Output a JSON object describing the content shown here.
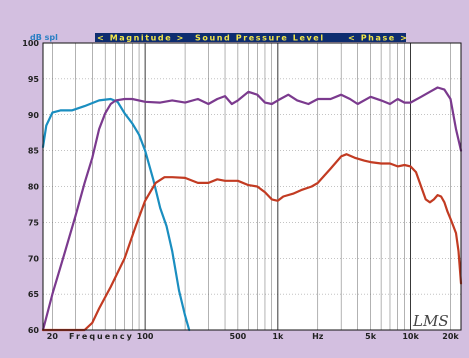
{
  "header": {
    "magnitude": "< Magnitude >",
    "spl": "Sound Pressure Level",
    "phase": "< Phase >"
  },
  "signature": "LMS",
  "colors": {
    "background": "#d3bfe0",
    "header_bar": "#0e2d70",
    "header_text": "#f2e64a",
    "plot_bg": "#ffffff",
    "blue": "#1a8ec0",
    "purple": "#7b3a8e",
    "red": "#c23b22"
  },
  "chart_data": {
    "type": "line",
    "x_scale": "log",
    "xlim": [
      17,
      24000
    ],
    "ylim": [
      60,
      100
    ],
    "ylabel": "dB spl",
    "xlabel": "Frequency",
    "y_ticks": [
      60,
      65,
      70,
      75,
      80,
      85,
      90,
      95,
      100
    ],
    "x_tick_labels": [
      {
        "f": 20,
        "label": "20"
      },
      {
        "f": 100,
        "label": "100"
      },
      {
        "f": 500,
        "label": "500"
      },
      {
        "f": 1000,
        "label": "1k"
      },
      {
        "f": 2000,
        "label": "Hz"
      },
      {
        "f": 5000,
        "label": "5k"
      },
      {
        "f": 10000,
        "label": "10k"
      },
      {
        "f": 20000,
        "label": "20k"
      }
    ],
    "grid": true,
    "series": [
      {
        "color": "#1a8ec0",
        "points": [
          [
            17,
            85.5
          ],
          [
            18,
            88.5
          ],
          [
            20,
            90.3
          ],
          [
            23,
            90.6
          ],
          [
            28,
            90.6
          ],
          [
            35,
            91.2
          ],
          [
            45,
            92.0
          ],
          [
            55,
            92.2
          ],
          [
            62,
            91.8
          ],
          [
            70,
            90.2
          ],
          [
            80,
            88.8
          ],
          [
            90,
            87.2
          ],
          [
            100,
            85
          ],
          [
            115,
            81
          ],
          [
            130,
            77
          ],
          [
            145,
            74.5
          ],
          [
            160,
            71
          ],
          [
            180,
            65.5
          ],
          [
            200,
            62
          ],
          [
            215,
            60
          ]
        ]
      },
      {
        "color": "#7b3a8e",
        "points": [
          [
            17,
            60
          ],
          [
            20,
            65
          ],
          [
            25,
            71
          ],
          [
            30,
            76
          ],
          [
            35,
            80.5
          ],
          [
            40,
            84
          ],
          [
            45,
            88
          ],
          [
            50,
            90.2
          ],
          [
            55,
            91.5
          ],
          [
            60,
            92
          ],
          [
            70,
            92.2
          ],
          [
            80,
            92.2
          ],
          [
            100,
            91.8
          ],
          [
            130,
            91.7
          ],
          [
            160,
            92
          ],
          [
            200,
            91.7
          ],
          [
            250,
            92.2
          ],
          [
            300,
            91.5
          ],
          [
            350,
            92.2
          ],
          [
            400,
            92.6
          ],
          [
            450,
            91.5
          ],
          [
            500,
            92
          ],
          [
            600,
            93.2
          ],
          [
            700,
            92.8
          ],
          [
            800,
            91.7
          ],
          [
            900,
            91.5
          ],
          [
            1000,
            92
          ],
          [
            1200,
            92.8
          ],
          [
            1400,
            92
          ],
          [
            1700,
            91.5
          ],
          [
            2000,
            92.2
          ],
          [
            2500,
            92.2
          ],
          [
            3000,
            92.8
          ],
          [
            3500,
            92.2
          ],
          [
            4000,
            91.5
          ],
          [
            5000,
            92.5
          ],
          [
            6000,
            92
          ],
          [
            7000,
            91.5
          ],
          [
            8000,
            92.2
          ],
          [
            9000,
            91.7
          ],
          [
            10000,
            91.7
          ],
          [
            12000,
            92.5
          ],
          [
            14000,
            93.2
          ],
          [
            16000,
            93.8
          ],
          [
            18000,
            93.5
          ],
          [
            20000,
            92.2
          ],
          [
            22000,
            88
          ],
          [
            24000,
            85
          ]
        ]
      },
      {
        "color": "#c23b22",
        "points": [
          [
            17,
            60
          ],
          [
            35,
            60
          ],
          [
            40,
            61
          ],
          [
            45,
            63
          ],
          [
            55,
            66
          ],
          [
            70,
            70
          ],
          [
            85,
            74.5
          ],
          [
            100,
            78
          ],
          [
            120,
            80.5
          ],
          [
            140,
            81.3
          ],
          [
            160,
            81.3
          ],
          [
            200,
            81.2
          ],
          [
            250,
            80.5
          ],
          [
            300,
            80.5
          ],
          [
            350,
            81
          ],
          [
            400,
            80.8
          ],
          [
            500,
            80.8
          ],
          [
            600,
            80.2
          ],
          [
            700,
            80
          ],
          [
            800,
            79.2
          ],
          [
            900,
            78.2
          ],
          [
            1000,
            78
          ],
          [
            1100,
            78.6
          ],
          [
            1300,
            79
          ],
          [
            1500,
            79.5
          ],
          [
            1800,
            80
          ],
          [
            2000,
            80.5
          ],
          [
            2500,
            82.5
          ],
          [
            3000,
            84.2
          ],
          [
            3300,
            84.5
          ],
          [
            3800,
            84
          ],
          [
            4500,
            83.6
          ],
          [
            5000,
            83.4
          ],
          [
            6000,
            83.2
          ],
          [
            7000,
            83.2
          ],
          [
            8000,
            82.8
          ],
          [
            9000,
            83
          ],
          [
            10000,
            82.8
          ],
          [
            11000,
            82
          ],
          [
            12000,
            80
          ],
          [
            13000,
            78.2
          ],
          [
            14000,
            77.8
          ],
          [
            15000,
            78.2
          ],
          [
            16000,
            78.8
          ],
          [
            17000,
            78.6
          ],
          [
            18000,
            77.8
          ],
          [
            19000,
            76.5
          ],
          [
            20000,
            75.5
          ],
          [
            21000,
            74.5
          ],
          [
            22000,
            73.5
          ],
          [
            23000,
            71
          ],
          [
            24000,
            66.5
          ]
        ]
      }
    ]
  }
}
